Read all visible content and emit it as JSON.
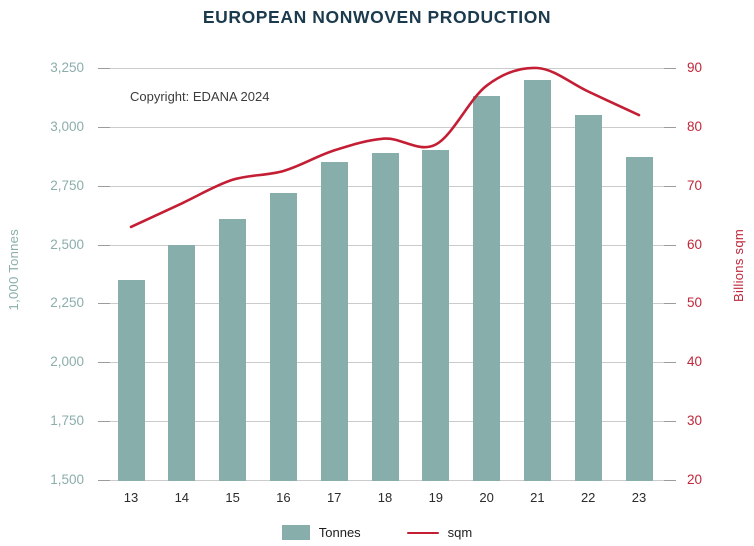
{
  "chart_data": {
    "type": "combo",
    "title": "EUROPEAN NONWOVEN PRODUCTION",
    "annotation": "Copyright: EDANA 2024",
    "categories": [
      "13",
      "14",
      "15",
      "16",
      "17",
      "18",
      "19",
      "20",
      "21",
      "22",
      "23"
    ],
    "series": [
      {
        "name": "Tonnes",
        "type": "bar",
        "axis": "left",
        "color": "#87aeab",
        "values": [
          2350,
          2500,
          2610,
          2720,
          2850,
          2890,
          2900,
          3130,
          3200,
          3050,
          2870
        ]
      },
      {
        "name": "sqm",
        "type": "line",
        "axis": "right",
        "color": "#c41e34",
        "values": [
          63,
          67,
          71,
          72.5,
          76,
          78,
          77,
          87,
          90,
          86,
          82
        ]
      }
    ],
    "left_axis": {
      "label": "1,000 Tonnes",
      "min": 1500,
      "max": 3250,
      "tick_step": 250,
      "tick_labels_top_to_bottom": [
        "3,250",
        "3,000",
        "2,750",
        "2,500",
        "2,250",
        "2,000",
        "1,750",
        "1,500"
      ],
      "text_color": "#8baeab"
    },
    "right_axis": {
      "label": "Billions sqm",
      "min": 20,
      "max": 90,
      "tick_step": 10,
      "tick_labels_top_to_bottom": [
        "90",
        "80",
        "70",
        "60",
        "50",
        "40",
        "30",
        "20"
      ],
      "text_color": "#c0273a"
    },
    "grid": true,
    "gridline_color": "#cbcbcb",
    "title_color": "#1b3a4d",
    "legend_position": "bottom"
  }
}
